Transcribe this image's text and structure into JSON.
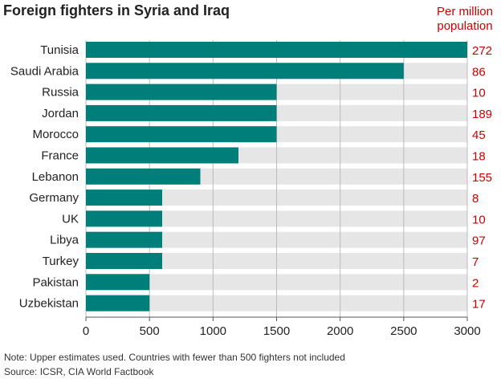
{
  "title": "Foreign fighters in Syria and Iraq",
  "side_header": {
    "line1": "Per million",
    "line2": "population"
  },
  "notes": {
    "note": "Note: Upper estimates used. Countries with fewer than 500 fighters not included",
    "source": "Source: ICSR, CIA World Factbook"
  },
  "colors": {
    "bar": "#007f7a",
    "track": "#e6e6e6",
    "accent": "#cc0000",
    "grid": "#bbbbbb"
  },
  "chart_data": {
    "type": "bar",
    "orientation": "horizontal",
    "title": "Foreign fighters in Syria and Iraq",
    "categories": [
      "Tunisia",
      "Saudi Arabia",
      "Russia",
      "Jordan",
      "Morocco",
      "France",
      "Lebanon",
      "Germany",
      "UK",
      "Libya",
      "Turkey",
      "Pakistan",
      "Uzbekistan"
    ],
    "values": [
      3000,
      2500,
      1500,
      1500,
      1500,
      1200,
      900,
      600,
      600,
      600,
      600,
      500,
      500
    ],
    "per_million": [
      "272",
      "86",
      "10",
      "189",
      "45",
      "18",
      "155",
      "8",
      "10",
      "97",
      "7",
      "2",
      "17"
    ],
    "xlim": [
      0,
      3000
    ],
    "xticks": [
      0,
      500,
      1000,
      1500,
      2000,
      2500,
      3000
    ],
    "grid": true
  }
}
